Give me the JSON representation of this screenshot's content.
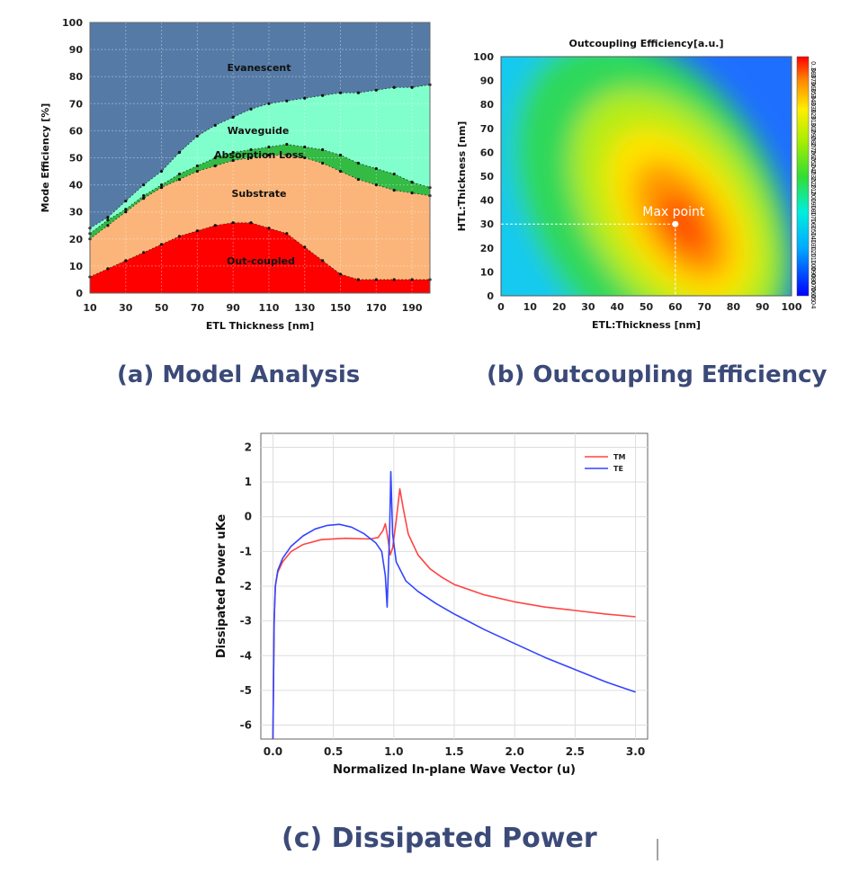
{
  "chart_data": [
    {
      "id": "a",
      "type": "area",
      "stacked": true,
      "xlabel": "ETL Thickness [nm]",
      "ylabel": "Mode Efficiency [%]",
      "xlim": [
        10,
        200
      ],
      "ylim": [
        0,
        100
      ],
      "xticks": [
        10,
        30,
        50,
        70,
        90,
        110,
        130,
        150,
        170,
        190
      ],
      "yticks": [
        0,
        10,
        20,
        30,
        40,
        50,
        60,
        70,
        80,
        90,
        100
      ],
      "x": [
        10,
        20,
        30,
        40,
        50,
        60,
        70,
        80,
        90,
        100,
        110,
        120,
        130,
        140,
        150,
        160,
        170,
        180,
        190,
        200
      ],
      "series": [
        {
          "name": "Out-coupled",
          "color": "#ff0000",
          "values": [
            6,
            9,
            12,
            15,
            18,
            21,
            23,
            25,
            26,
            26,
            24,
            22,
            17,
            12,
            7,
            5,
            5,
            5,
            5,
            5
          ]
        },
        {
          "name": "Substrate",
          "color": "#fbb57a",
          "values": [
            20,
            25,
            30,
            35,
            39,
            42,
            45,
            47,
            49,
            50,
            51,
            51,
            50,
            48,
            45,
            42,
            40,
            38,
            37,
            36
          ]
        },
        {
          "name": "Absorption Loss",
          "color": "#33bb44",
          "values": [
            22,
            27,
            31,
            36,
            40,
            44,
            47,
            50,
            52,
            53,
            54,
            55,
            54,
            53,
            51,
            48,
            46,
            44,
            41,
            39
          ]
        },
        {
          "name": "Waveguide",
          "color": "#80ffcc",
          "values": [
            24,
            28,
            34,
            40,
            45,
            52,
            58,
            62,
            65,
            68,
            70,
            71,
            72,
            73,
            74,
            74,
            75,
            76,
            76,
            77
          ]
        },
        {
          "name": "Evanescent",
          "color": "#557aa6",
          "values": [
            100,
            100,
            100,
            100,
            100,
            100,
            100,
            100,
            100,
            100,
            100,
            100,
            100,
            100,
            100,
            100,
            100,
            100,
            100,
            100
          ]
        }
      ],
      "caption": "(a) Model Analysis"
    },
    {
      "id": "b",
      "type": "heatmap",
      "title": "Outcoupling Efficiency[a.u.]",
      "xlabel": "ETL:Thickness [nm]",
      "ylabel": "HTL:Thickness [nm]",
      "xlim": [
        0,
        100
      ],
      "ylim": [
        0,
        100
      ],
      "xticks": [
        0,
        10,
        20,
        30,
        40,
        50,
        60,
        70,
        80,
        90,
        100
      ],
      "yticks": [
        0,
        10,
        20,
        30,
        40,
        50,
        60,
        70,
        80,
        90,
        100
      ],
      "colorbar": {
        "min": 0.04,
        "max": 0.38,
        "ticks": [
          "0.38",
          "0.37",
          "0.36",
          "0.35",
          "0.34",
          "0.33",
          "0.32",
          "0.31",
          "0.30",
          "0.29",
          "0.28",
          "0.27",
          "0.26",
          "0.25",
          "0.24",
          "0.23",
          "0.22",
          "0.21",
          "0.20",
          "0.19",
          "0.18",
          "0.17",
          "0.16",
          "0.15",
          "0.14",
          "0.13",
          "0.12",
          "0.11",
          "0.10",
          "0.09",
          "0.08",
          "0.07",
          "0.06",
          "0.05",
          "0.04"
        ]
      },
      "max_point": {
        "label": "Max point",
        "x": 60,
        "y": 30,
        "value": 0.38
      },
      "caption": "(b) Outcoupling Efficiency"
    },
    {
      "id": "c",
      "type": "line",
      "xlabel": "Normalized In-plane Wave Vector (u)",
      "ylabel": "Dissipated Power uKe",
      "xlim": [
        -0.1,
        3.1
      ],
      "ylim": [
        -6.4,
        2.4
      ],
      "xticks": [
        "0.0",
        "0.5",
        "1.0",
        "1.5",
        "2.0",
        "2.5",
        "3.0"
      ],
      "yticks": [
        "2",
        "1",
        "0",
        "-1",
        "-2",
        "-3",
        "-4",
        "-5",
        "-6"
      ],
      "grid": true,
      "legend": "top-right",
      "series": [
        {
          "name": "TM",
          "color": "#ff4444",
          "points": [
            [
              0.0,
              -6.4
            ],
            [
              0.01,
              -3.0
            ],
            [
              0.02,
              -2.0
            ],
            [
              0.04,
              -1.6
            ],
            [
              0.08,
              -1.3
            ],
            [
              0.15,
              -1.0
            ],
            [
              0.25,
              -0.8
            ],
            [
              0.4,
              -0.66
            ],
            [
              0.6,
              -0.62
            ],
            [
              0.8,
              -0.64
            ],
            [
              0.87,
              -0.6
            ],
            [
              0.91,
              -0.4
            ],
            [
              0.93,
              -0.2
            ],
            [
              0.95,
              -0.6
            ],
            [
              0.97,
              -1.1
            ],
            [
              0.99,
              -0.9
            ],
            [
              1.02,
              -0.1
            ],
            [
              1.05,
              0.8
            ],
            [
              1.08,
              0.2
            ],
            [
              1.12,
              -0.5
            ],
            [
              1.2,
              -1.1
            ],
            [
              1.3,
              -1.5
            ],
            [
              1.4,
              -1.75
            ],
            [
              1.5,
              -1.95
            ],
            [
              1.75,
              -2.25
            ],
            [
              2.0,
              -2.45
            ],
            [
              2.25,
              -2.6
            ],
            [
              2.5,
              -2.7
            ],
            [
              2.75,
              -2.8
            ],
            [
              3.0,
              -2.88
            ]
          ]
        },
        {
          "name": "TE",
          "color": "#3344ff",
          "points": [
            [
              0.0,
              -6.4
            ],
            [
              0.01,
              -3.0
            ],
            [
              0.02,
              -2.0
            ],
            [
              0.04,
              -1.55
            ],
            [
              0.08,
              -1.2
            ],
            [
              0.15,
              -0.85
            ],
            [
              0.25,
              -0.55
            ],
            [
              0.35,
              -0.35
            ],
            [
              0.45,
              -0.25
            ],
            [
              0.55,
              -0.22
            ],
            [
              0.65,
              -0.3
            ],
            [
              0.75,
              -0.48
            ],
            [
              0.85,
              -0.75
            ],
            [
              0.9,
              -1.0
            ],
            [
              0.93,
              -1.7
            ],
            [
              0.945,
              -2.6
            ],
            [
              0.955,
              -1.5
            ],
            [
              0.965,
              -0.5
            ],
            [
              0.975,
              1.3
            ],
            [
              0.99,
              -0.5
            ],
            [
              1.02,
              -1.3
            ],
            [
              1.1,
              -1.85
            ],
            [
              1.2,
              -2.15
            ],
            [
              1.35,
              -2.5
            ],
            [
              1.5,
              -2.8
            ],
            [
              1.75,
              -3.25
            ],
            [
              2.0,
              -3.65
            ],
            [
              2.25,
              -4.05
            ],
            [
              2.5,
              -4.4
            ],
            [
              2.75,
              -4.75
            ],
            [
              3.0,
              -5.05
            ]
          ]
        }
      ],
      "caption": "(c) Dissipated Power"
    }
  ]
}
